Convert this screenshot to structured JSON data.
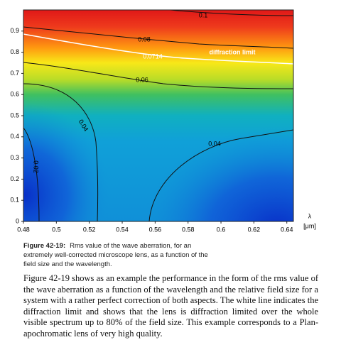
{
  "chart_data": {
    "type": "contour",
    "xlim": [
      0.48,
      0.644
    ],
    "xticks": [
      0.48,
      0.5,
      0.52,
      0.54,
      0.56,
      0.58,
      0.6,
      0.62,
      0.64
    ],
    "ylim": [
      0,
      1
    ],
    "yticks": [
      0,
      0.1,
      0.2,
      0.3,
      0.4,
      0.5,
      0.6,
      0.7,
      0.8,
      0.9
    ],
    "x_label": [
      "λ",
      "[μm]"
    ],
    "contour_levels": [
      0.02,
      0.04,
      0.06,
      0.0714,
      0.08,
      0.1
    ],
    "annotation": "diffraction limit"
  },
  "caption": {
    "label": "Figure 42-19:",
    "text": "Rms value of the wave aberration, for an extremely well-corrected microscope lens, as a function of the field size and the wavelength."
  },
  "body": "Figure 42-19 shows as an example the performance in the form of the rms value of the wave aberration as a function of the wavelength and the relative field size for a system with a rather perfect correction of both aspects. The white line indicates the diffraction limit and shows that the lens is diffraction limited over the whole visible spectrum up to 80% of the field size. This example corresponds to a Plan-apochromatic lens of very high quality."
}
